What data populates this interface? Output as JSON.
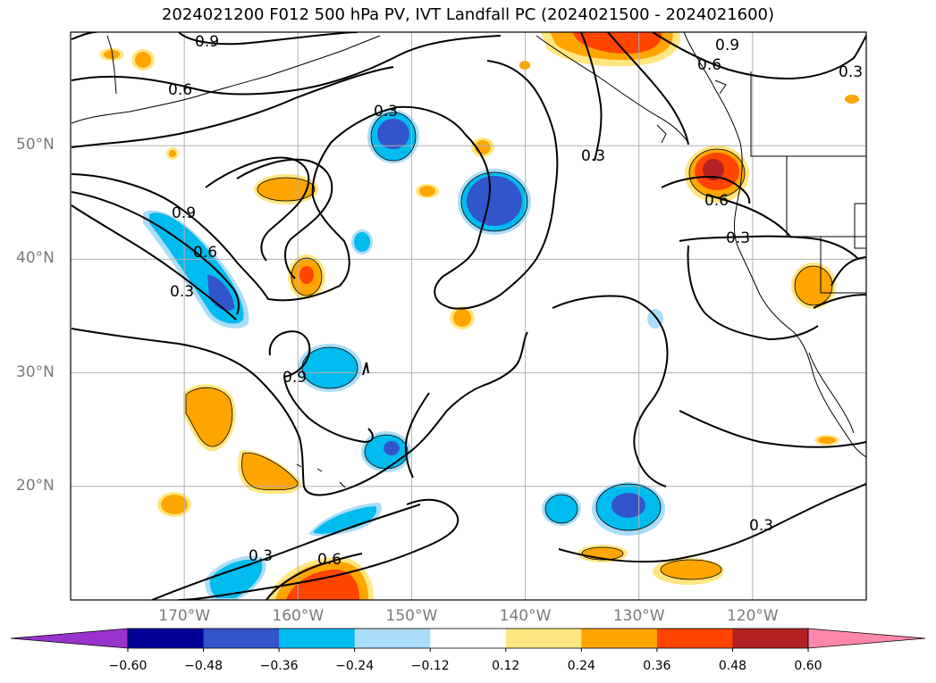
{
  "title": "2024021200 F012 500 hPa PV, IVT Landfall PC (2024021500 - 2024021600)",
  "map": {
    "projection": "PlateCarree",
    "lon_range": [
      -180,
      -110
    ],
    "lat_range": [
      10,
      60
    ],
    "lat_ticks": [
      {
        "lat": 50,
        "label": "50°N"
      },
      {
        "lat": 40,
        "label": "40°N"
      },
      {
        "lat": 30,
        "label": "30°N"
      },
      {
        "lat": 20,
        "label": "20°N"
      }
    ],
    "lon_ticks": [
      {
        "lon": -170,
        "label": "170°W"
      },
      {
        "lon": -160,
        "label": "160°W"
      },
      {
        "lon": -150,
        "label": "150°W"
      },
      {
        "lon": -140,
        "label": "140°W"
      },
      {
        "lon": -130,
        "label": "130°W"
      },
      {
        "lon": -120,
        "label": "120°W"
      }
    ],
    "gridlines": true,
    "contour_labels": [
      "0.9",
      "0.6",
      "0.3",
      "0.6",
      "0.9",
      "0.3",
      "0.3",
      "0.6",
      "0.3",
      "0.9",
      "0.6",
      "0.3",
      "0.9",
      "0.3",
      "0.6",
      "0.3"
    ]
  },
  "colorbar": {
    "boundaries": [
      -0.6,
      -0.48,
      -0.36,
      -0.24,
      -0.12,
      0.12,
      0.24,
      0.36,
      0.48,
      0.6
    ],
    "tick_labels": [
      "−0.60",
      "−0.48",
      "−0.36",
      "−0.24",
      "−0.12",
      "0.12",
      "0.24",
      "0.36",
      "0.48",
      "0.60"
    ],
    "colors": [
      "#9933cc",
      "#000099",
      "#3355cc",
      "#00bbee",
      "#aaddf7",
      "#ffffff",
      "#ffe680",
      "#ffa500",
      "#ff4500",
      "#b22222",
      "#ff88aa"
    ],
    "extend": "both"
  }
}
